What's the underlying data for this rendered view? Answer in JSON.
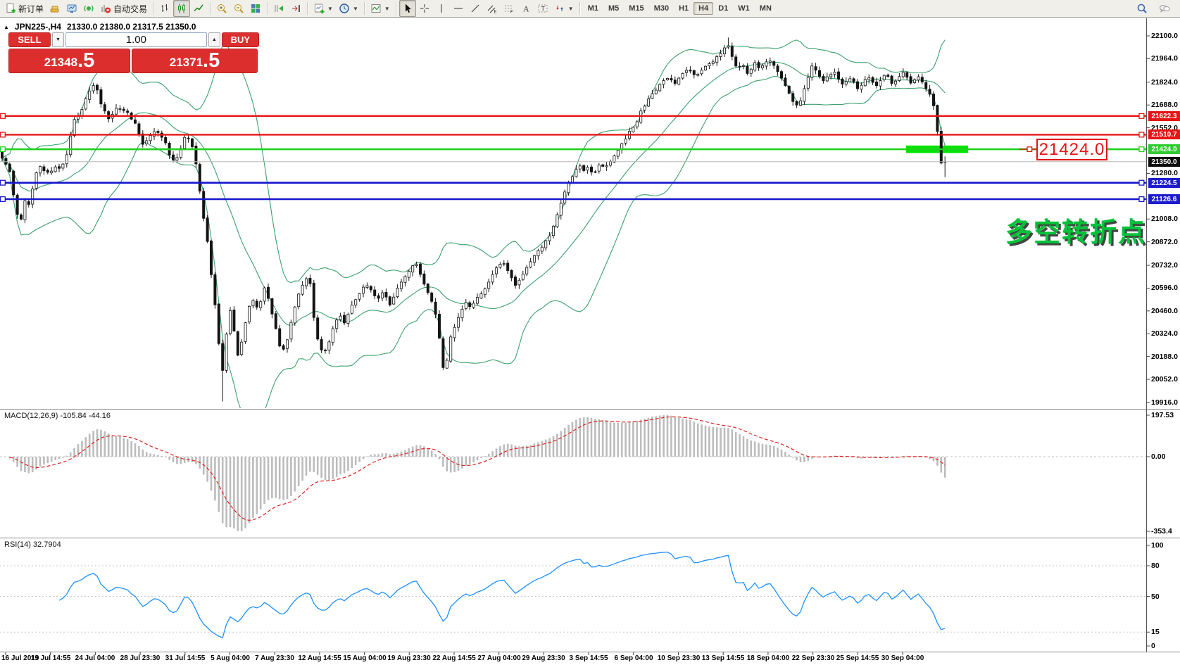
{
  "colors": {
    "line_red": "#e81414",
    "line_green": "#1fd11f",
    "line_blue": "#1717cf",
    "badge_red": "#e81414",
    "badge_green": "#2ecc2e",
    "badge_blue": "#1c1ccd",
    "badge_black": "#0c0c0c",
    "bb_green": "#3da06e",
    "macd_hist": "#bcbcbc",
    "macd_signal": "#e02020",
    "rsi_blue": "#1e90ff",
    "sell_buy_red": "#dd2e2e",
    "highlight_green": "#00e400",
    "annotation_green": "#00c238",
    "callout_red": "#e41414",
    "current_price_line": "#b8b8b8"
  },
  "toolbar": {
    "buttons_left": [
      {
        "name": "new-order",
        "icon": "doc-plus",
        "label": "新订单"
      },
      {
        "name": "market-watch",
        "icon": "gold"
      },
      {
        "name": "data-window",
        "icon": "monitor"
      },
      {
        "name": "signals",
        "icon": "signal"
      },
      {
        "name": "auto-trading",
        "icon": "autotrade",
        "label": "自动交易"
      },
      {
        "sep": true
      },
      {
        "name": "bar-chart-mode",
        "icon": "bars"
      },
      {
        "name": "candle-chart-mode",
        "icon": "candles",
        "active": true
      },
      {
        "name": "line-chart-mode",
        "icon": "line"
      },
      {
        "sep": true
      },
      {
        "name": "zoom-in",
        "icon": "zoom-in"
      },
      {
        "name": "zoom-out",
        "icon": "zoom-out"
      },
      {
        "name": "tile-windows",
        "icon": "tiles"
      },
      {
        "sep": true
      },
      {
        "name": "auto-scroll",
        "icon": "autoscroll"
      },
      {
        "name": "chart-shift",
        "icon": "shift"
      },
      {
        "sep": true
      },
      {
        "name": "new-chart",
        "icon": "new-chart",
        "caret": true
      },
      {
        "name": "periods",
        "icon": "clock",
        "caret": true
      },
      {
        "sep": true
      },
      {
        "name": "indicators-list",
        "icon": "indicators",
        "caret": true
      },
      {
        "sep": true
      },
      {
        "name": "cursor",
        "icon": "cursor",
        "active": true
      },
      {
        "name": "crosshair",
        "icon": "crosshair"
      },
      {
        "name": "vertical-line-tool",
        "icon": "vline"
      },
      {
        "name": "horizontal-line-tool",
        "icon": "hline"
      },
      {
        "name": "trendline-tool",
        "icon": "trendline"
      },
      {
        "name": "channel-tool",
        "icon": "channel"
      },
      {
        "name": "fibonacci-tool",
        "icon": "fibo"
      },
      {
        "name": "text-tool",
        "icon": "text-a"
      },
      {
        "name": "text-label-tool",
        "icon": "label-t"
      },
      {
        "name": "arrows-tool",
        "icon": "arrows",
        "caret": true
      },
      {
        "sep": true
      }
    ],
    "timeframes": [
      "M1",
      "M5",
      "M15",
      "M30",
      "H1",
      "H4",
      "D1",
      "W1",
      "MN"
    ],
    "active_timeframe": "H4",
    "right_icons": [
      {
        "name": "search",
        "icon": "search"
      },
      {
        "name": "chat",
        "icon": "chat"
      }
    ]
  },
  "chart_header": {
    "collapse_icon": "▲",
    "title": "JPN225-,H4",
    "ohlc": "21330.0 21380.0 21317.5 21350.0"
  },
  "trade_panel": {
    "sell_label": "SELL",
    "buy_label": "BUY",
    "volume": "1.00",
    "vol_down_glyph": "▼",
    "vol_up_glyph": "▲",
    "sell_price_int": "21348",
    "sell_price_frac": ".5",
    "buy_price_int": "21371",
    "buy_price_frac": ".5"
  },
  "indicators": {
    "macd_label": "MACD(12,26,9) -105.84 -44.16",
    "rsi_label": "RSI(14) 32.7904"
  },
  "annotations": {
    "price_callout": "21424.0",
    "turning_point_text": "多空转折点"
  },
  "price_axis": {
    "ticks": [
      "22100.0",
      "21964.0",
      "21824.0",
      "21688.0",
      "21552.0",
      "21280.0",
      "21008.0",
      "20872.0",
      "20732.0",
      "20596.0",
      "20460.0",
      "20324.0",
      "20188.0",
      "20052.0",
      "19916.0"
    ],
    "badges": [
      {
        "value": "21622.3",
        "color_key": "badge_red"
      },
      {
        "value": "21510.7",
        "color_key": "badge_red"
      },
      {
        "value": "21424.0",
        "color_key": "badge_green"
      },
      {
        "value": "21350.0",
        "color_key": "badge_black"
      },
      {
        "value": "21224.5",
        "color_key": "badge_blue"
      },
      {
        "value": "21126.6",
        "color_key": "badge_blue"
      }
    ]
  },
  "macd_axis": [
    "197.53",
    "0.00",
    "-353.4"
  ],
  "rsi_axis": [
    "100",
    "80",
    "50",
    "15",
    "0"
  ],
  "time_axis": [
    "16 Jul 2019",
    "19 Jul 14:55",
    "24 Jul 04:00",
    "28 Jul 23:30",
    "31 Jul 14:55",
    "5 Aug 04:00",
    "7 Aug 23:30",
    "12 Aug 14:55",
    "15 Aug 04:00",
    "19 Aug 23:30",
    "22 Aug 14:55",
    "27 Aug 04:00",
    "29 Aug 23:30",
    "3 Sep 14:55",
    "6 Sep 04:00",
    "10 Sep 23:30",
    "13 Sep 14:55",
    "18 Sep 04:00",
    "22 Sep 23:30",
    "25 Sep 14:55",
    "30 Sep 04:00"
  ],
  "chart_data": {
    "type": "candlestick",
    "symbol": "JPN225-",
    "period": "H4",
    "header_ohlc": {
      "open": 21330.0,
      "high": 21380.0,
      "low": 21317.5,
      "close": 21350.0
    },
    "bid": 21348.5,
    "ask": 21371.5,
    "current_price": 21350.0,
    "y_range": [
      19916.0,
      22100.0
    ],
    "price_ticks": [
      22100,
      21964,
      21824,
      21688,
      21552,
      21280,
      21008,
      20872,
      20732,
      20596,
      20460,
      20324,
      20188,
      20052,
      19916
    ],
    "hlines": [
      {
        "price": 21622.3,
        "color": "red"
      },
      {
        "price": 21510.7,
        "color": "red"
      },
      {
        "price": 21424.0,
        "color": "green"
      },
      {
        "price": 21224.5,
        "color": "blue"
      },
      {
        "price": 21126.6,
        "color": "blue"
      }
    ],
    "highlight_zone": {
      "price": 21424.0,
      "x_from": 1287,
      "x_to": 1375
    },
    "session_low": 19916.0,
    "session_high": 22090.0,
    "indicators": [
      {
        "name": "Bollinger Bands",
        "period": 20,
        "deviation": 2
      },
      {
        "name": "MACD",
        "params": [
          12,
          26,
          9
        ],
        "values": [
          -105.84,
          -44.16
        ],
        "axis_range": [
          -353.4,
          197.53
        ]
      },
      {
        "name": "RSI",
        "params": [
          14
        ],
        "value": 32.7904,
        "levels": [
          15,
          50,
          80
        ],
        "axis_range": [
          0,
          100
        ]
      }
    ],
    "candle_spacing_px": 5.4,
    "price_path": [
      [
        0,
        21420
      ],
      [
        8,
        21360
      ],
      [
        16,
        21300
      ],
      [
        22,
        21150
      ],
      [
        28,
        21020
      ],
      [
        33,
        21000
      ],
      [
        38,
        21120
      ],
      [
        45,
        21080
      ],
      [
        52,
        21260
      ],
      [
        58,
        21340
      ],
      [
        64,
        21300
      ],
      [
        72,
        21280
      ],
      [
        80,
        21320
      ],
      [
        88,
        21300
      ],
      [
        95,
        21350
      ],
      [
        100,
        21420
      ],
      [
        105,
        21550
      ],
      [
        110,
        21640
      ],
      [
        116,
        21610
      ],
      [
        122,
        21700
      ],
      [
        128,
        21760
      ],
      [
        134,
        21820
      ],
      [
        140,
        21780
      ],
      [
        146,
        21690
      ],
      [
        152,
        21640
      ],
      [
        158,
        21600
      ],
      [
        164,
        21640
      ],
      [
        170,
        21680
      ],
      [
        176,
        21650
      ],
      [
        182,
        21660
      ],
      [
        188,
        21620
      ],
      [
        194,
        21580
      ],
      [
        200,
        21520
      ],
      [
        206,
        21450
      ],
      [
        212,
        21480
      ],
      [
        218,
        21520
      ],
      [
        224,
        21540
      ],
      [
        230,
        21510
      ],
      [
        236,
        21480
      ],
      [
        242,
        21400
      ],
      [
        248,
        21350
      ],
      [
        254,
        21370
      ],
      [
        260,
        21440
      ],
      [
        266,
        21500
      ],
      [
        272,
        21480
      ],
      [
        278,
        21420
      ],
      [
        284,
        21250
      ],
      [
        290,
        21050
      ],
      [
        296,
        20920
      ],
      [
        302,
        20700
      ],
      [
        308,
        20500
      ],
      [
        314,
        20250
      ],
      [
        318,
        20080
      ],
      [
        322,
        20200
      ],
      [
        326,
        20400
      ],
      [
        331,
        20480
      ],
      [
        336,
        20300
      ],
      [
        341,
        20180
      ],
      [
        347,
        20300
      ],
      [
        353,
        20420
      ],
      [
        359,
        20540
      ],
      [
        365,
        20500
      ],
      [
        371,
        20460
      ],
      [
        377,
        20620
      ],
      [
        383,
        20550
      ],
      [
        389,
        20450
      ],
      [
        395,
        20350
      ],
      [
        401,
        20230
      ],
      [
        407,
        20240
      ],
      [
        413,
        20330
      ],
      [
        419,
        20450
      ],
      [
        425,
        20530
      ],
      [
        431,
        20610
      ],
      [
        437,
        20660
      ],
      [
        443,
        20620
      ],
      [
        449,
        20400
      ],
      [
        455,
        20270
      ],
      [
        461,
        20210
      ],
      [
        467,
        20230
      ],
      [
        473,
        20320
      ],
      [
        479,
        20400
      ],
      [
        485,
        20440
      ],
      [
        491,
        20390
      ],
      [
        497,
        20440
      ],
      [
        503,
        20500
      ],
      [
        509,
        20540
      ],
      [
        515,
        20580
      ],
      [
        521,
        20620
      ],
      [
        527,
        20600
      ],
      [
        533,
        20560
      ],
      [
        539,
        20520
      ],
      [
        545,
        20570
      ],
      [
        551,
        20540
      ],
      [
        557,
        20490
      ],
      [
        563,
        20560
      ],
      [
        569,
        20610
      ],
      [
        575,
        20650
      ],
      [
        581,
        20690
      ],
      [
        587,
        20720
      ],
      [
        593,
        20740
      ],
      [
        599,
        20690
      ],
      [
        605,
        20620
      ],
      [
        611,
        20570
      ],
      [
        617,
        20500
      ],
      [
        623,
        20420
      ],
      [
        628,
        20250
      ],
      [
        633,
        20100
      ],
      [
        637,
        20150
      ],
      [
        641,
        20280
      ],
      [
        646,
        20340
      ],
      [
        651,
        20390
      ],
      [
        656,
        20440
      ],
      [
        661,
        20480
      ],
      [
        666,
        20520
      ],
      [
        671,
        20470
      ],
      [
        676,
        20510
      ],
      [
        681,
        20540
      ],
      [
        686,
        20560
      ],
      [
        691,
        20590
      ],
      [
        696,
        20620
      ],
      [
        701,
        20660
      ],
      [
        706,
        20700
      ],
      [
        711,
        20730
      ],
      [
        716,
        20750
      ],
      [
        721,
        20720
      ],
      [
        726,
        20680
      ],
      [
        731,
        20640
      ],
      [
        736,
        20610
      ],
      [
        741,
        20650
      ],
      [
        746,
        20690
      ],
      [
        751,
        20720
      ],
      [
        756,
        20750
      ],
      [
        761,
        20780
      ],
      [
        766,
        20810
      ],
      [
        771,
        20840
      ],
      [
        776,
        20860
      ],
      [
        781,
        20890
      ],
      [
        786,
        20940
      ],
      [
        791,
        21000
      ],
      [
        796,
        21060
      ],
      [
        801,
        21120
      ],
      [
        806,
        21180
      ],
      [
        811,
        21230
      ],
      [
        816,
        21270
      ],
      [
        821,
        21300
      ],
      [
        826,
        21320
      ],
      [
        831,
        21290
      ],
      [
        836,
        21330
      ],
      [
        841,
        21300
      ],
      [
        846,
        21270
      ],
      [
        851,
        21310
      ],
      [
        856,
        21340
      ],
      [
        861,
        21300
      ],
      [
        866,
        21330
      ],
      [
        871,
        21360
      ],
      [
        876,
        21390
      ],
      [
        881,
        21420
      ],
      [
        886,
        21450
      ],
      [
        891,
        21480
      ],
      [
        896,
        21520
      ],
      [
        901,
        21550
      ],
      [
        906,
        21580
      ],
      [
        911,
        21630
      ],
      [
        916,
        21670
      ],
      [
        921,
        21700
      ],
      [
        926,
        21730
      ],
      [
        931,
        21760
      ],
      [
        936,
        21790
      ],
      [
        941,
        21810
      ],
      [
        946,
        21830
      ],
      [
        951,
        21850
      ],
      [
        956,
        21830
      ],
      [
        961,
        21810
      ],
      [
        966,
        21840
      ],
      [
        971,
        21870
      ],
      [
        976,
        21890
      ],
      [
        981,
        21900
      ],
      [
        986,
        21880
      ],
      [
        991,
        21860
      ],
      [
        996,
        21890
      ],
      [
        1001,
        21910
      ],
      [
        1006,
        21930
      ],
      [
        1011,
        21940
      ],
      [
        1016,
        21950
      ],
      [
        1021,
        21970
      ],
      [
        1026,
        21990
      ],
      [
        1031,
        22020
      ],
      [
        1036,
        22050
      ],
      [
        1041,
        21990
      ],
      [
        1046,
        21930
      ],
      [
        1051,
        21900
      ],
      [
        1056,
        21940
      ],
      [
        1061,
        21900
      ],
      [
        1066,
        21870
      ],
      [
        1071,
        21910
      ],
      [
        1076,
        21940
      ],
      [
        1081,
        21900
      ],
      [
        1086,
        21930
      ],
      [
        1091,
        21950
      ],
      [
        1096,
        21960
      ],
      [
        1101,
        21930
      ],
      [
        1106,
        21890
      ],
      [
        1111,
        21860
      ],
      [
        1116,
        21820
      ],
      [
        1121,
        21780
      ],
      [
        1126,
        21740
      ],
      [
        1131,
        21700
      ],
      [
        1136,
        21670
      ],
      [
        1141,
        21720
      ],
      [
        1146,
        21790
      ],
      [
        1151,
        21860
      ],
      [
        1156,
        21920
      ],
      [
        1161,
        21890
      ],
      [
        1166,
        21860
      ],
      [
        1171,
        21830
      ],
      [
        1176,
        21850
      ],
      [
        1181,
        21870
      ],
      [
        1186,
        21890
      ],
      [
        1191,
        21860
      ],
      [
        1196,
        21830
      ],
      [
        1201,
        21810
      ],
      [
        1206,
        21830
      ],
      [
        1211,
        21850
      ],
      [
        1216,
        21820
      ],
      [
        1221,
        21790
      ],
      [
        1226,
        21810
      ],
      [
        1231,
        21840
      ],
      [
        1236,
        21860
      ],
      [
        1241,
        21830
      ],
      [
        1246,
        21800
      ],
      [
        1251,
        21820
      ],
      [
        1256,
        21850
      ],
      [
        1261,
        21870
      ],
      [
        1266,
        21840
      ],
      [
        1271,
        21810
      ],
      [
        1276,
        21830
      ],
      [
        1281,
        21860
      ],
      [
        1286,
        21880
      ],
      [
        1291,
        21850
      ],
      [
        1296,
        21820
      ],
      [
        1301,
        21840
      ],
      [
        1306,
        21860
      ],
      [
        1311,
        21830
      ],
      [
        1316,
        21800
      ],
      [
        1321,
        21770
      ],
      [
        1326,
        21730
      ],
      [
        1330,
        21650
      ],
      [
        1334,
        21540
      ],
      [
        1338,
        21400
      ],
      [
        1341,
        21290
      ],
      [
        1343,
        21350
      ]
    ]
  }
}
